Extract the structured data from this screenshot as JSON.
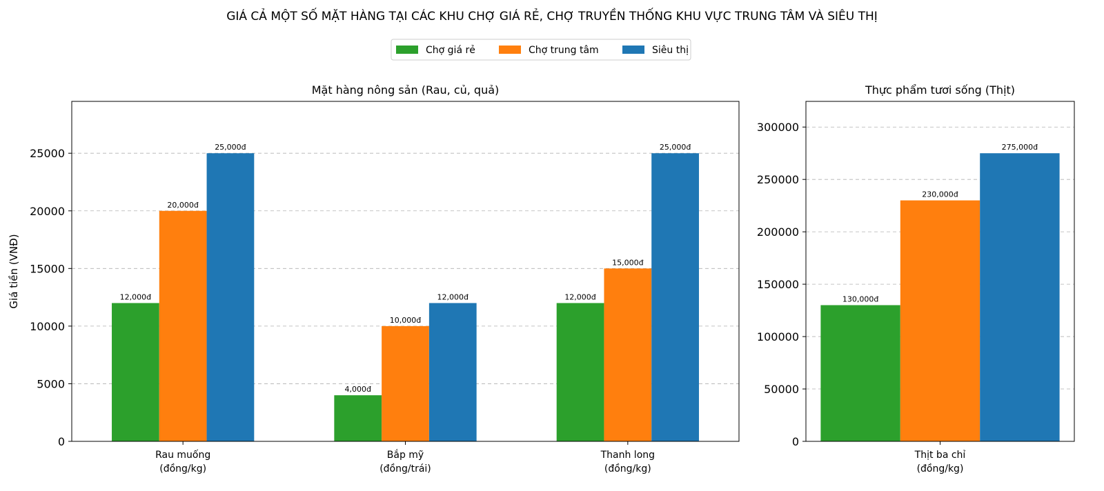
{
  "title": "GIÁ CẢ MỘT SỐ MẶT HÀNG TẠI CÁC KHU CHỢ GIÁ RẺ, CHỢ TRUYỀN THỐNG KHU VỰC TRUNG TÂM VÀ SIÊU THỊ",
  "legend": [
    {
      "name": "Chợ giá rẻ",
      "color": "#2ca02c"
    },
    {
      "name": "Chợ trung tâm",
      "color": "#ff7f0e"
    },
    {
      "name": "Siêu thị",
      "color": "#1f77b4"
    }
  ],
  "chart_data": [
    {
      "type": "bar",
      "title": "Mặt hàng nông sản (Rau, củ, quả)",
      "ylabel": "Giá tiền (VNĐ)",
      "categories": [
        [
          "Rau muống",
          "(đồng/kg)"
        ],
        [
          "Bắp mỹ",
          "(đồng/trái)"
        ],
        [
          "Thanh long",
          "(đồng/kg)"
        ]
      ],
      "series": [
        {
          "name": "Chợ giá rẻ",
          "values": [
            12000,
            4000,
            12000
          ],
          "labels": [
            "12,000đ",
            "4,000đ",
            "12,000đ"
          ]
        },
        {
          "name": "Chợ trung tâm",
          "values": [
            20000,
            10000,
            15000
          ],
          "labels": [
            "20,000đ",
            "10,000đ",
            "15,000đ"
          ]
        },
        {
          "name": "Siêu thị",
          "values": [
            25000,
            12000,
            25000
          ],
          "labels": [
            "25,000đ",
            "12,000đ",
            "25,000đ"
          ]
        }
      ],
      "ylim": [
        0,
        29500
      ],
      "yticks": [
        0,
        5000,
        10000,
        15000,
        20000,
        25000
      ],
      "grid": "y-dashed"
    },
    {
      "type": "bar",
      "title": "Thực phẩm tươi sống (Thịt)",
      "ylabel": "",
      "categories": [
        [
          "Thịt ba chỉ",
          "(đồng/kg)"
        ]
      ],
      "series": [
        {
          "name": "Chợ giá rẻ",
          "values": [
            130000
          ],
          "labels": [
            "130,000đ"
          ]
        },
        {
          "name": "Chợ trung tâm",
          "values": [
            230000
          ],
          "labels": [
            "230,000đ"
          ]
        },
        {
          "name": "Siêu thị",
          "values": [
            275000
          ],
          "labels": [
            "275,000đ"
          ]
        }
      ],
      "ylim": [
        0,
        324500
      ],
      "yticks": [
        0,
        50000,
        100000,
        150000,
        200000,
        250000,
        300000
      ],
      "grid": "y-dashed"
    }
  ]
}
